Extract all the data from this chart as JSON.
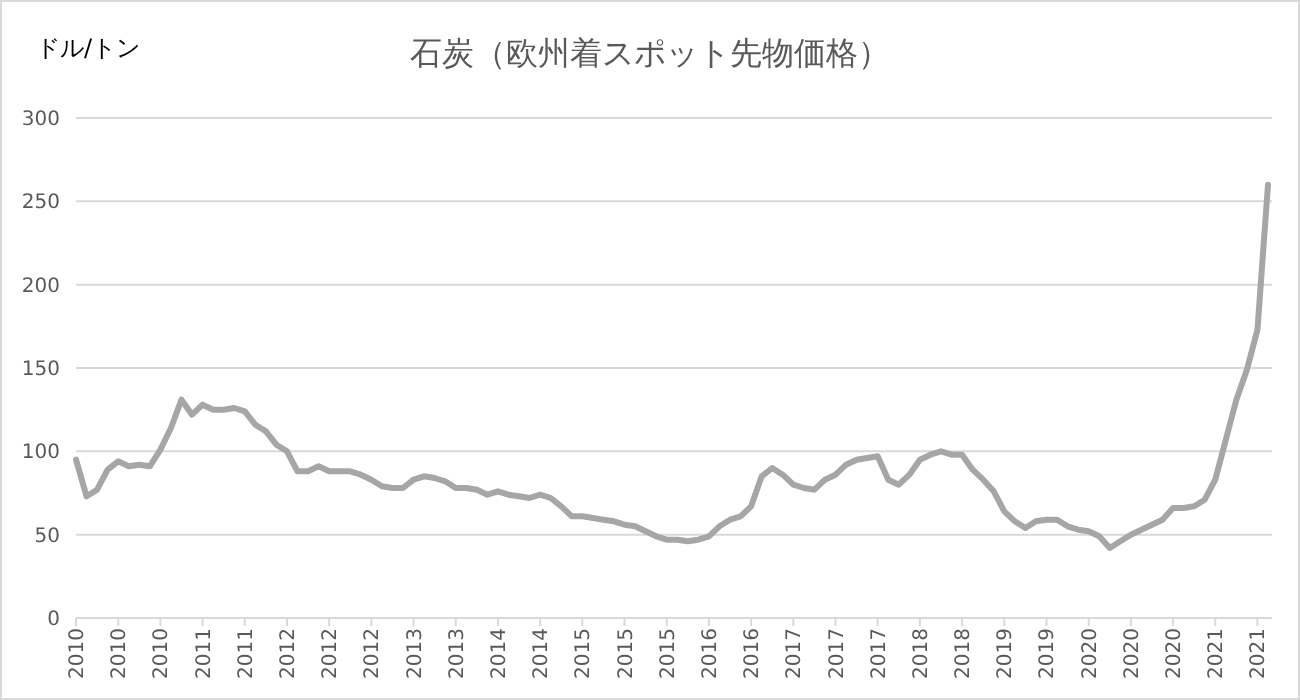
{
  "chart_data": {
    "type": "line",
    "title": "石炭（欧州着スポット先物価格）",
    "ylabel": "ドル/トン",
    "categories": [
      "2010",
      null,
      null,
      null,
      "2010",
      null,
      null,
      null,
      "2010",
      null,
      null,
      null,
      "2011",
      null,
      null,
      null,
      "2011",
      null,
      null,
      null,
      "2012",
      null,
      null,
      null,
      "2012",
      null,
      null,
      null,
      "2012",
      null,
      null,
      null,
      "2013",
      null,
      null,
      null,
      "2013",
      null,
      null,
      null,
      "2014",
      null,
      null,
      null,
      "2014",
      null,
      null,
      null,
      "2015",
      null,
      null,
      null,
      "2015",
      null,
      null,
      null,
      "2015",
      null,
      null,
      null,
      "2016",
      null,
      null,
      null,
      "2016",
      null,
      null,
      null,
      "2017",
      null,
      null,
      null,
      "2017",
      null,
      null,
      null,
      "2017",
      null,
      null,
      null,
      "2018",
      null,
      null,
      null,
      "2018",
      null,
      null,
      null,
      "2019",
      null,
      null,
      null,
      "2019",
      null,
      null,
      null,
      "2020",
      null,
      null,
      null,
      "2020",
      null,
      null,
      null,
      "2020",
      null,
      null,
      null,
      "2021",
      null,
      null,
      null,
      "2021",
      null
    ],
    "series": [
      {
        "color": "#a6a6a6",
        "values": [
          95,
          73,
          77,
          89,
          94,
          91,
          92,
          91,
          101,
          114,
          131,
          122,
          128,
          125,
          125,
          126,
          124,
          116,
          112,
          104,
          100,
          88,
          88,
          91,
          88,
          88,
          88,
          86,
          83,
          79,
          78,
          78,
          83,
          85,
          84,
          82,
          78,
          78,
          77,
          74,
          76,
          74,
          73,
          72,
          74,
          72,
          67,
          61,
          61,
          60,
          59,
          58,
          56,
          55,
          52,
          49,
          47,
          47,
          46,
          47,
          49,
          55,
          59,
          61,
          67,
          85,
          90,
          86,
          80,
          78,
          77,
          83,
          86,
          92,
          95,
          96,
          97,
          83,
          80,
          86,
          95,
          98,
          100,
          98,
          98,
          89,
          83,
          76,
          64,
          58,
          54,
          58,
          59,
          59,
          55,
          53,
          52,
          49,
          42,
          46,
          50,
          53,
          56,
          59,
          66,
          66,
          67,
          71,
          83,
          107,
          131,
          149,
          173,
          260
        ]
      }
    ],
    "ylim": [
      0,
      300
    ],
    "yticks": [
      0,
      50,
      100,
      150,
      200,
      250,
      300
    ],
    "grid": "y",
    "marker": "none",
    "line_style": "solid"
  }
}
